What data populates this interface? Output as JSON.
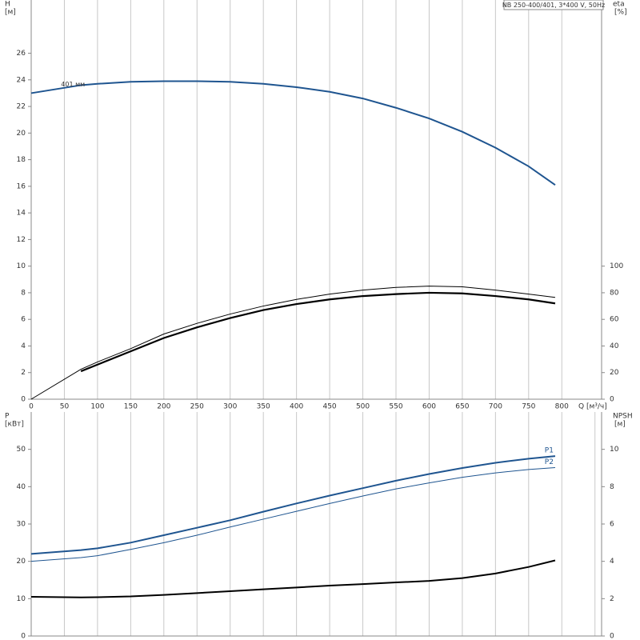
{
  "chart_data": [
    {
      "type": "line",
      "title": "NB 250-400/401, 3*400 V, 50Hz",
      "y_label": "H",
      "y_unit": "[м]",
      "y2_label": "eta",
      "y2_unit": "[%]",
      "x_label": "Q [м³/ч]",
      "annotation": {
        "text": "401 мм",
        "x": 45,
        "y": 23.6
      },
      "x": [
        0,
        75,
        100,
        150,
        200,
        250,
        300,
        350,
        400,
        450,
        500,
        550,
        600,
        650,
        700,
        750,
        790
      ],
      "xlim": [
        0,
        860
      ],
      "xticks": [
        0,
        50,
        100,
        150,
        200,
        250,
        300,
        350,
        400,
        450,
        500,
        550,
        600,
        650,
        700,
        750,
        800
      ],
      "ylim": [
        0,
        30
      ],
      "yticks": [
        0,
        2,
        4,
        6,
        8,
        10,
        12,
        14,
        16,
        18,
        20,
        22,
        24,
        26
      ],
      "y2lim": [
        0,
        300
      ],
      "y2ticks": [
        0,
        20,
        40,
        60,
        80,
        100
      ],
      "grid": true,
      "series": [
        {
          "color": "#1f5590",
          "width": 2,
          "values": [
            23.0,
            23.6,
            23.7,
            23.85,
            23.9,
            23.9,
            23.85,
            23.7,
            23.45,
            23.1,
            22.6,
            21.9,
            21.1,
            20.1,
            18.9,
            17.5,
            16.1
          ]
        },
        {
          "color": "#000000",
          "width": 1,
          "axis": "y2",
          "values": [
            0,
            22.5,
            28,
            38,
            49,
            57,
            64,
            70,
            75,
            79,
            82,
            84,
            85,
            84.5,
            82,
            79,
            76.5
          ]
        },
        {
          "color": "#000000",
          "width": 2.2,
          "axis": "y2",
          "values": [
            null,
            21,
            26,
            36,
            46,
            54,
            61,
            67,
            71.5,
            75,
            77.5,
            79,
            80,
            79.5,
            77.5,
            75,
            72
          ]
        }
      ]
    },
    {
      "type": "line",
      "y_label": "P",
      "y_unit": "[кВт]",
      "y2_label": "NPSH",
      "y2_unit": "[м]",
      "x": [
        0,
        75,
        100,
        150,
        200,
        250,
        300,
        350,
        400,
        450,
        500,
        550,
        600,
        650,
        700,
        750,
        790
      ],
      "xlim": [
        0,
        860
      ],
      "xgrid": [
        0,
        50,
        100,
        150,
        200,
        250,
        300,
        350,
        400,
        450,
        500,
        550,
        600,
        650,
        700,
        750,
        800,
        850
      ],
      "ylim": [
        0,
        60
      ],
      "yticks": [
        0,
        10,
        20,
        30,
        40,
        50
      ],
      "y2lim": [
        0,
        12
      ],
      "y2ticks": [
        0,
        2,
        4,
        6,
        8,
        10
      ],
      "series": [
        {
          "name": "P1",
          "color": "#1f5590",
          "width": 2,
          "values": [
            22,
            23,
            23.5,
            25,
            27,
            29,
            31,
            33.3,
            35.5,
            37.6,
            39.6,
            41.6,
            43.4,
            45,
            46.4,
            47.5,
            48.2
          ]
        },
        {
          "name": "P2",
          "color": "#1f5590",
          "width": 1,
          "values": [
            20,
            21,
            21.5,
            23.2,
            25,
            27,
            29.2,
            31.3,
            33.4,
            35.5,
            37.5,
            39.4,
            41,
            42.5,
            43.7,
            44.6,
            45.1
          ]
        },
        {
          "color": "#000000",
          "width": 2,
          "axis": "y2",
          "values": [
            2.1,
            2.07,
            2.08,
            2.12,
            2.2,
            2.3,
            2.4,
            2.5,
            2.6,
            2.7,
            2.78,
            2.87,
            2.95,
            3.1,
            3.35,
            3.7,
            4.05
          ]
        }
      ]
    }
  ]
}
